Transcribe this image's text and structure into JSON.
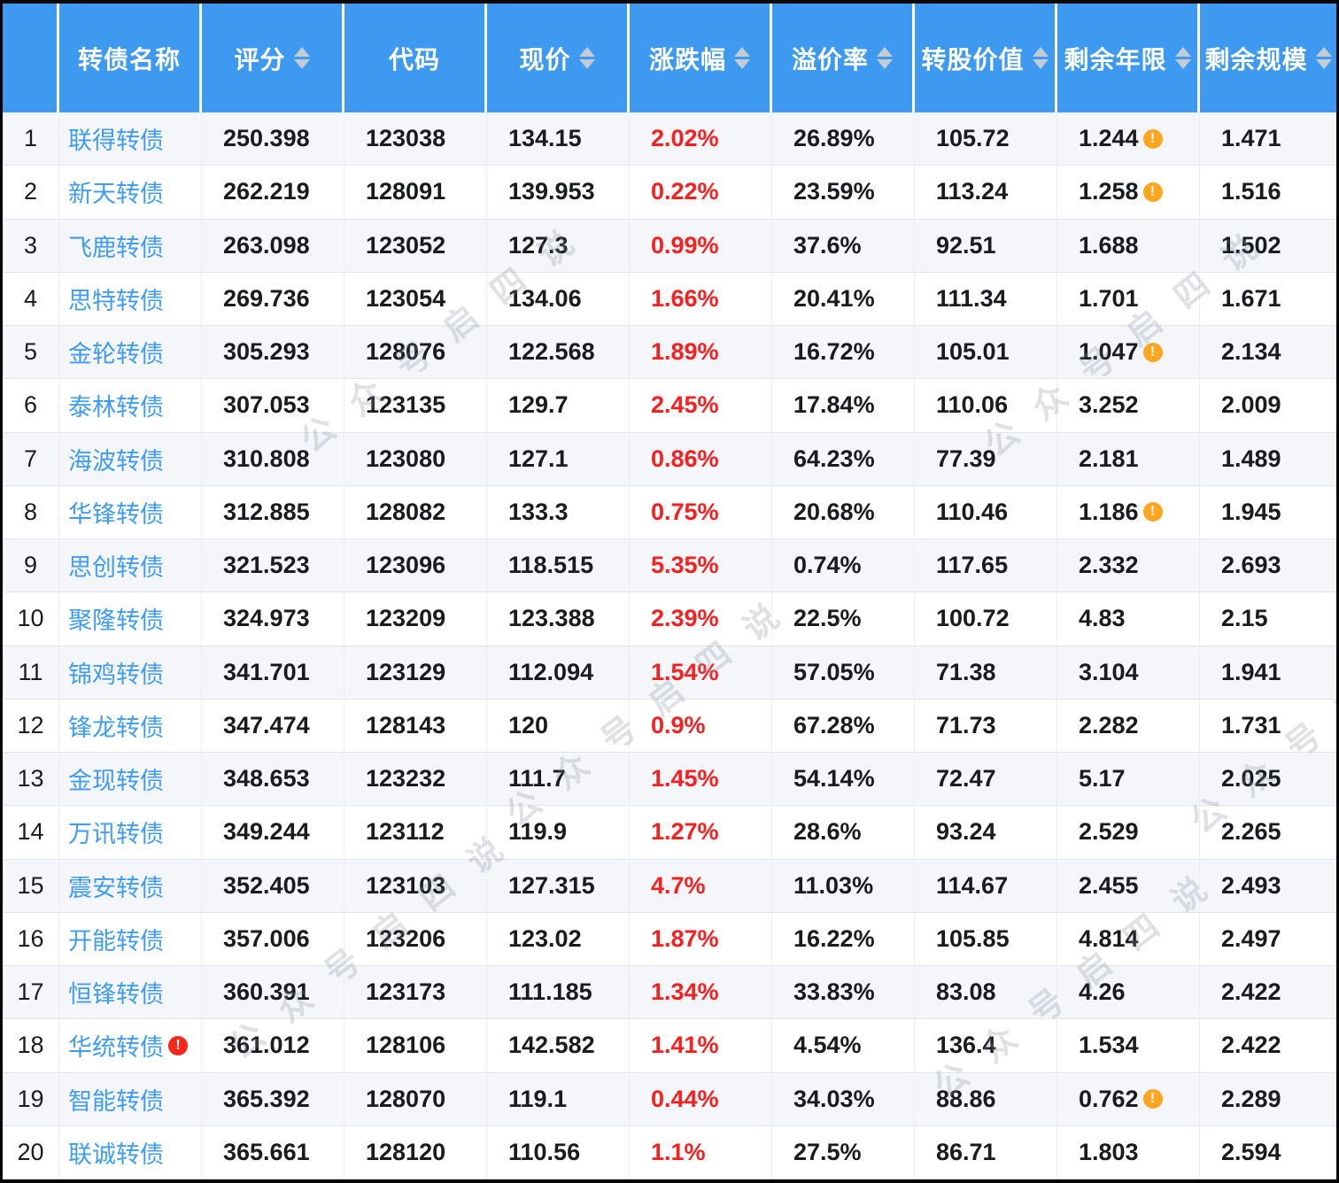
{
  "watermark": {
    "text": "公众号启四说"
  },
  "colors": {
    "header_bg": "#3E9AF0",
    "link": "#3E9CF6",
    "up_red": "#F91F1F",
    "alert_orange": "#FFA51F",
    "alert_red": "#F5271D",
    "stripe": "#F4F6FA",
    "sort_icon": "#C3CCD5"
  },
  "table": {
    "columns": [
      {
        "label": "",
        "sortable": false
      },
      {
        "label": "转债名称",
        "sortable": false
      },
      {
        "label": "评分",
        "sortable": true
      },
      {
        "label": "代码",
        "sortable": false
      },
      {
        "label": "现价",
        "sortable": true
      },
      {
        "label": "涨跌幅",
        "sortable": true
      },
      {
        "label": "溢价率",
        "sortable": true
      },
      {
        "label": "转股价值",
        "sortable": true
      },
      {
        "label": "剩余年限",
        "sortable": true
      },
      {
        "label": "剩余规模",
        "sortable": true
      }
    ],
    "rows": [
      {
        "num": "1",
        "name": "联得转债",
        "name_alert": false,
        "score": "250.398",
        "code": "123038",
        "price": "134.15",
        "change": "2.02%",
        "premium": "26.89%",
        "conversion_value": "105.72",
        "years_left": "1.244",
        "years_alert": true,
        "size_left": "1.471"
      },
      {
        "num": "2",
        "name": "新天转债",
        "name_alert": false,
        "score": "262.219",
        "code": "128091",
        "price": "139.953",
        "change": "0.22%",
        "premium": "23.59%",
        "conversion_value": "113.24",
        "years_left": "1.258",
        "years_alert": true,
        "size_left": "1.516"
      },
      {
        "num": "3",
        "name": "飞鹿转债",
        "name_alert": false,
        "score": "263.098",
        "code": "123052",
        "price": "127.3",
        "change": "0.99%",
        "premium": "37.6%",
        "conversion_value": "92.51",
        "years_left": "1.688",
        "years_alert": false,
        "size_left": "1.502"
      },
      {
        "num": "4",
        "name": "思特转债",
        "name_alert": false,
        "score": "269.736",
        "code": "123054",
        "price": "134.06",
        "change": "1.66%",
        "premium": "20.41%",
        "conversion_value": "111.34",
        "years_left": "1.701",
        "years_alert": false,
        "size_left": "1.671"
      },
      {
        "num": "5",
        "name": "金轮转债",
        "name_alert": false,
        "score": "305.293",
        "code": "128076",
        "price": "122.568",
        "change": "1.89%",
        "premium": "16.72%",
        "conversion_value": "105.01",
        "years_left": "1.047",
        "years_alert": true,
        "size_left": "2.134"
      },
      {
        "num": "6",
        "name": "泰林转债",
        "name_alert": false,
        "score": "307.053",
        "code": "123135",
        "price": "129.7",
        "change": "2.45%",
        "premium": "17.84%",
        "conversion_value": "110.06",
        "years_left": "3.252",
        "years_alert": false,
        "size_left": "2.009"
      },
      {
        "num": "7",
        "name": "海波转债",
        "name_alert": false,
        "score": "310.808",
        "code": "123080",
        "price": "127.1",
        "change": "0.86%",
        "premium": "64.23%",
        "conversion_value": "77.39",
        "years_left": "2.181",
        "years_alert": false,
        "size_left": "1.489"
      },
      {
        "num": "8",
        "name": "华锋转债",
        "name_alert": false,
        "score": "312.885",
        "code": "128082",
        "price": "133.3",
        "change": "0.75%",
        "premium": "20.68%",
        "conversion_value": "110.46",
        "years_left": "1.186",
        "years_alert": true,
        "size_left": "1.945"
      },
      {
        "num": "9",
        "name": "思创转债",
        "name_alert": false,
        "score": "321.523",
        "code": "123096",
        "price": "118.515",
        "change": "5.35%",
        "premium": "0.74%",
        "conversion_value": "117.65",
        "years_left": "2.332",
        "years_alert": false,
        "size_left": "2.693"
      },
      {
        "num": "10",
        "name": "聚隆转债",
        "name_alert": false,
        "score": "324.973",
        "code": "123209",
        "price": "123.388",
        "change": "2.39%",
        "premium": "22.5%",
        "conversion_value": "100.72",
        "years_left": "4.83",
        "years_alert": false,
        "size_left": "2.15"
      },
      {
        "num": "11",
        "name": "锦鸡转债",
        "name_alert": false,
        "score": "341.701",
        "code": "123129",
        "price": "112.094",
        "change": "1.54%",
        "premium": "57.05%",
        "conversion_value": "71.38",
        "years_left": "3.104",
        "years_alert": false,
        "size_left": "1.941"
      },
      {
        "num": "12",
        "name": "锋龙转债",
        "name_alert": false,
        "score": "347.474",
        "code": "128143",
        "price": "120",
        "change": "0.9%",
        "premium": "67.28%",
        "conversion_value": "71.73",
        "years_left": "2.282",
        "years_alert": false,
        "size_left": "1.731"
      },
      {
        "num": "13",
        "name": "金现转债",
        "name_alert": false,
        "score": "348.653",
        "code": "123232",
        "price": "111.7",
        "change": "1.45%",
        "premium": "54.14%",
        "conversion_value": "72.47",
        "years_left": "5.17",
        "years_alert": false,
        "size_left": "2.025"
      },
      {
        "num": "14",
        "name": "万讯转债",
        "name_alert": false,
        "score": "349.244",
        "code": "123112",
        "price": "119.9",
        "change": "1.27%",
        "premium": "28.6%",
        "conversion_value": "93.24",
        "years_left": "2.529",
        "years_alert": false,
        "size_left": "2.265"
      },
      {
        "num": "15",
        "name": "震安转债",
        "name_alert": false,
        "score": "352.405",
        "code": "123103",
        "price": "127.315",
        "change": "4.7%",
        "premium": "11.03%",
        "conversion_value": "114.67",
        "years_left": "2.455",
        "years_alert": false,
        "size_left": "2.493"
      },
      {
        "num": "16",
        "name": "开能转债",
        "name_alert": false,
        "score": "357.006",
        "code": "123206",
        "price": "123.02",
        "change": "1.87%",
        "premium": "16.22%",
        "conversion_value": "105.85",
        "years_left": "4.814",
        "years_alert": false,
        "size_left": "2.497"
      },
      {
        "num": "17",
        "name": "恒锋转债",
        "name_alert": false,
        "score": "360.391",
        "code": "123173",
        "price": "111.185",
        "change": "1.34%",
        "premium": "33.83%",
        "conversion_value": "83.08",
        "years_left": "4.26",
        "years_alert": false,
        "size_left": "2.422"
      },
      {
        "num": "18",
        "name": "华统转债",
        "name_alert": true,
        "score": "361.012",
        "code": "128106",
        "price": "142.582",
        "change": "1.41%",
        "premium": "4.54%",
        "conversion_value": "136.4",
        "years_left": "1.534",
        "years_alert": false,
        "size_left": "2.422"
      },
      {
        "num": "19",
        "name": "智能转债",
        "name_alert": false,
        "score": "365.392",
        "code": "128070",
        "price": "119.1",
        "change": "0.44%",
        "premium": "34.03%",
        "conversion_value": "88.86",
        "years_left": "0.762",
        "years_alert": true,
        "size_left": "2.289"
      },
      {
        "num": "20",
        "name": "联诚转债",
        "name_alert": false,
        "score": "365.661",
        "code": "128120",
        "price": "110.56",
        "change": "1.1%",
        "premium": "27.5%",
        "conversion_value": "86.71",
        "years_left": "1.803",
        "years_alert": false,
        "size_left": "2.594"
      }
    ]
  }
}
